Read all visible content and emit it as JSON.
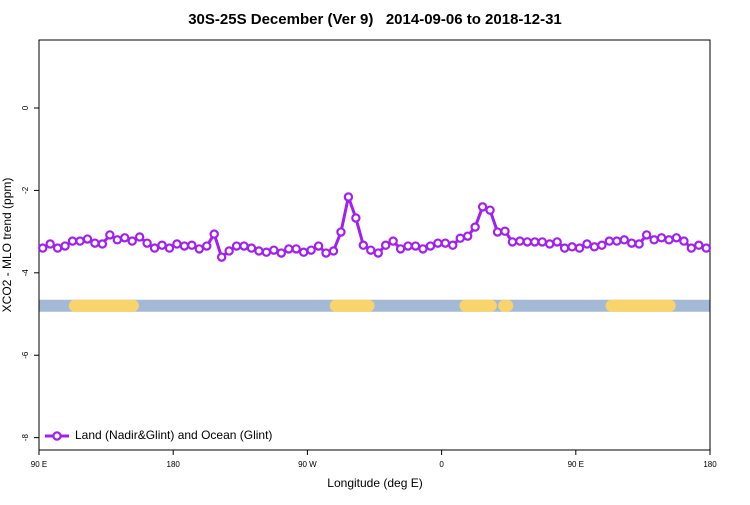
{
  "chart_data": {
    "type": "line",
    "title": "30S-25S December (Ver 9)   2014-09-06 to 2018-12-31",
    "x_label": "Longitude (deg E)",
    "y_label": "XCO2 - MLO trend (ppm)",
    "xlim": [
      90,
      540
    ],
    "ylim": [
      -8.3,
      1.65
    ],
    "xticks": [
      {
        "value": 90,
        "label": "90 E"
      },
      180,
      {
        "value": 270,
        "label": "90 W"
      },
      {
        "value": 360,
        "label": "0"
      },
      {
        "value": 450,
        "label": "90 E"
      },
      {
        "value": 540,
        "label": "180"
      }
    ],
    "yticks": [
      -8,
      -6,
      -4,
      -2,
      0
    ],
    "legend_position": "bottom-left",
    "x": [
      92.5,
      97.5,
      102.5,
      107.5,
      112.5,
      117.5,
      122.5,
      127.5,
      132.5,
      137.5,
      142.5,
      147.5,
      152.5,
      157.5,
      162.5,
      167.5,
      172.5,
      177.5,
      182.5,
      187.5,
      192.5,
      197.5,
      202.5,
      207.5,
      212.5,
      217.5,
      222.5,
      227.5,
      232.5,
      237.5,
      242.5,
      247.5,
      252.5,
      257.5,
      262.5,
      267.5,
      272.5,
      277.5,
      282.5,
      287.5,
      292.5,
      297.5,
      302.5,
      307.5,
      312.5,
      317.5,
      322.5,
      327.5,
      332.5,
      337.5,
      342.5,
      347.5,
      352.5,
      357.5,
      362.5,
      367.5,
      372.5,
      377.5,
      382.5,
      387.5,
      392.5,
      397.5,
      402.5,
      407.5,
      412.5,
      417.5,
      422.5,
      427.5,
      432.5,
      437.5,
      442.5,
      447.5,
      452.5,
      457.5,
      462.5,
      467.5,
      472.5,
      477.5,
      482.5,
      487.5,
      492.5,
      497.5,
      502.5,
      507.5,
      512.5,
      517.5,
      522.5,
      527.5,
      532.5,
      537.5
    ],
    "series": [
      {
        "name": "Land (Nadir&Glint) and Ocean (Glint)",
        "color": "#a020f0",
        "values": [
          -3.4,
          -3.3,
          -3.4,
          -3.35,
          -3.23,
          -3.23,
          -3.18,
          -3.28,
          -3.3,
          -3.08,
          -3.2,
          -3.15,
          -3.23,
          -3.13,
          -3.28,
          -3.4,
          -3.33,
          -3.4,
          -3.3,
          -3.35,
          -3.33,
          -3.42,
          -3.35,
          -3.06,
          -3.62,
          -3.47,
          -3.35,
          -3.35,
          -3.4,
          -3.47,
          -3.5,
          -3.45,
          -3.52,
          -3.42,
          -3.42,
          -3.5,
          -3.45,
          -3.35,
          -3.52,
          -3.47,
          -3.01,
          -2.16,
          -2.67,
          -3.33,
          -3.45,
          -3.52,
          -3.33,
          -3.23,
          -3.42,
          -3.35,
          -3.35,
          -3.42,
          -3.35,
          -3.28,
          -3.28,
          -3.33,
          -3.16,
          -3.11,
          -2.89,
          -2.4,
          -2.48,
          -3.01,
          -2.99,
          -3.25,
          -3.23,
          -3.25,
          -3.25,
          -3.25,
          -3.3,
          -3.25,
          -3.4,
          -3.37,
          -3.4,
          -3.3,
          -3.37,
          -3.33,
          -3.23,
          -3.23,
          -3.2,
          -3.28,
          -3.3,
          -3.08,
          -3.2,
          -3.15,
          -3.2,
          -3.15,
          -3.23,
          -3.4,
          -3.33,
          -3.4
        ]
      }
    ],
    "land_ocean_band": {
      "y": -4.8,
      "ocean_color": "#a3b9d6",
      "land_color": "#f9d46b",
      "land_ranges": [
        [
          114,
          153
        ],
        [
          289,
          311
        ],
        [
          376,
          393
        ],
        [
          402,
          404
        ],
        [
          474,
          513
        ]
      ]
    }
  }
}
